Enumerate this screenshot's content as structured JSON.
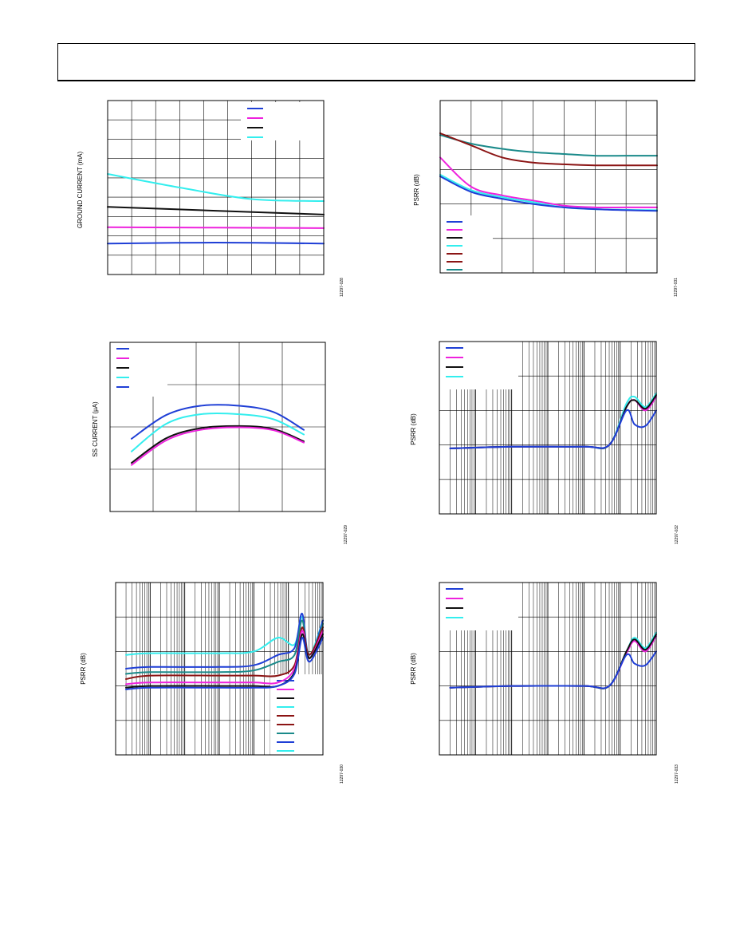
{
  "page": {
    "header_text": ""
  },
  "colors": {
    "blue": "#1f3fd6",
    "magenta": "#ee22dd",
    "black": "#111111",
    "cyan": "#33eeee",
    "maroon": "#8b1414",
    "teal": "#1a8a8a",
    "navy": "#1f3fd6"
  },
  "chart_data": [
    {
      "id": "c1",
      "type": "line",
      "ylabel": "GROUND CURRENT (mA)",
      "figure_id": "12297-028",
      "xscale": "linear",
      "xlim": [
        0,
        9
      ],
      "ylim": [
        0,
        9
      ],
      "grid": {
        "x": 9,
        "y": 9
      },
      "legend": {
        "position": "top-right",
        "colors": [
          "blue",
          "magenta",
          "black",
          "cyan"
        ]
      },
      "series": [
        {
          "color": "cyan",
          "x": [
            0,
            3,
            6,
            9
          ],
          "y": [
            5.2,
            4.5,
            3.9,
            3.8
          ]
        },
        {
          "color": "black",
          "x": [
            0,
            4.5,
            9
          ],
          "y": [
            3.5,
            3.3,
            3.1
          ]
        },
        {
          "color": "magenta",
          "x": [
            0,
            9
          ],
          "y": [
            2.45,
            2.4
          ]
        },
        {
          "color": "blue",
          "x": [
            0,
            4.5,
            9
          ],
          "y": [
            1.6,
            1.65,
            1.6
          ]
        }
      ]
    },
    {
      "id": "c2",
      "type": "line",
      "ylabel": "PSRR (dB)",
      "figure_id": "12297-031",
      "xscale": "linear",
      "xlim": [
        0,
        7
      ],
      "ylim": [
        0,
        5
      ],
      "grid": {
        "x": 7,
        "y": 5
      },
      "legend": {
        "position": "bottom-left",
        "colors": [
          "navy",
          "magenta",
          "black",
          "cyan",
          "maroon",
          "maroon",
          "teal"
        ]
      },
      "series": [
        {
          "color": "teal",
          "x": [
            0,
            1,
            2,
            3,
            4,
            5,
            6,
            7
          ],
          "y": [
            4.0,
            3.75,
            3.6,
            3.5,
            3.45,
            3.4,
            3.4,
            3.4
          ]
        },
        {
          "color": "maroon",
          "x": [
            0,
            1,
            2,
            3,
            4,
            5,
            6,
            7
          ],
          "y": [
            4.05,
            3.7,
            3.35,
            3.2,
            3.15,
            3.12,
            3.12,
            3.12
          ]
        },
        {
          "color": "magenta",
          "x": [
            0,
            1,
            2,
            3,
            4,
            5,
            6,
            7
          ],
          "y": [
            3.35,
            2.5,
            2.25,
            2.1,
            1.95,
            1.9,
            1.9,
            1.9
          ]
        },
        {
          "color": "cyan",
          "x": [
            0,
            1,
            2,
            3,
            4,
            5,
            6,
            7
          ],
          "y": [
            2.85,
            2.4,
            2.2,
            2.05,
            1.9,
            1.85,
            1.83,
            1.82
          ]
        },
        {
          "color": "blue",
          "x": [
            0,
            1,
            2,
            3,
            4,
            5,
            6,
            7
          ],
          "y": [
            2.8,
            2.35,
            2.15,
            2.0,
            1.9,
            1.85,
            1.82,
            1.8
          ]
        }
      ]
    },
    {
      "id": "c3",
      "type": "line",
      "ylabel": "SS CURRENT (µA)",
      "figure_id": "12297-029",
      "xscale": "linear",
      "xlim": [
        0,
        5
      ],
      "ylim": [
        0,
        4
      ],
      "grid": {
        "x": 5,
        "y": 4
      },
      "legend": {
        "position": "top-left",
        "colors": [
          "blue",
          "magenta",
          "black",
          "cyan",
          "blue"
        ]
      },
      "series": [
        {
          "color": "blue",
          "x": [
            0.5,
            1.3,
            2.1,
            3.0,
            3.8,
            4.5
          ],
          "y": [
            1.72,
            2.28,
            2.5,
            2.5,
            2.35,
            1.93
          ]
        },
        {
          "color": "cyan",
          "x": [
            0.5,
            1.3,
            2.1,
            3.0,
            3.8,
            4.5
          ],
          "y": [
            1.42,
            2.07,
            2.3,
            2.3,
            2.18,
            1.82
          ]
        },
        {
          "color": "black",
          "x": [
            0.5,
            1.3,
            2.1,
            3.0,
            3.8,
            4.5
          ],
          "y": [
            1.15,
            1.73,
            1.97,
            2.02,
            1.95,
            1.66
          ]
        },
        {
          "color": "magenta",
          "x": [
            0.5,
            1.3,
            2.1,
            3.0,
            3.8,
            4.5
          ],
          "y": [
            1.1,
            1.68,
            1.93,
            1.99,
            1.92,
            1.63
          ]
        }
      ]
    },
    {
      "id": "c4",
      "type": "line",
      "ylabel": "PSRR (dB)",
      "figure_id": "12297-032",
      "xscale": "log",
      "xlim": [
        10,
        10000000
      ],
      "ylim": [
        0,
        5
      ],
      "grid": {
        "x": "log",
        "y": 5
      },
      "legend": {
        "position": "top-left",
        "colors": [
          "blue",
          "magenta",
          "black",
          "cyan"
        ]
      },
      "series": [
        {
          "color": "cyan",
          "x": [
            20,
            1000,
            100000,
            500000,
            1500000,
            2500000,
            5000000,
            10000000
          ],
          "y": [
            1.9,
            1.95,
            1.95,
            2.0,
            3.2,
            3.4,
            3.1,
            3.5
          ]
        },
        {
          "color": "magenta",
          "x": [
            20,
            1000,
            100000,
            500000,
            1500000,
            2500000,
            5000000,
            10000000
          ],
          "y": [
            1.9,
            1.95,
            1.95,
            2.0,
            3.1,
            3.3,
            3.0,
            3.4
          ]
        },
        {
          "color": "black",
          "x": [
            20,
            1000,
            100000,
            500000,
            1500000,
            2500000,
            5000000,
            10000000
          ],
          "y": [
            1.9,
            1.95,
            1.95,
            2.0,
            3.1,
            3.3,
            3.05,
            3.45
          ]
        },
        {
          "color": "blue",
          "x": [
            20,
            1000,
            100000,
            500000,
            1500000,
            2500000,
            5000000,
            10000000
          ],
          "y": [
            1.9,
            1.95,
            1.95,
            2.0,
            3.0,
            2.6,
            2.55,
            3.0
          ]
        }
      ]
    },
    {
      "id": "c5",
      "type": "line",
      "ylabel": "PSRR (dB)",
      "figure_id": "12297-030",
      "xscale": "log",
      "xlim": [
        10,
        10000000
      ],
      "ylim": [
        0,
        5
      ],
      "grid": {
        "x": "log",
        "y": 5
      },
      "legend": {
        "position": "bottom-right",
        "colors": [
          "blue",
          "magenta",
          "black",
          "cyan",
          "maroon",
          "maroon",
          "teal",
          "blue",
          "cyan"
        ]
      },
      "series": [
        {
          "color": "cyan",
          "x": [
            20,
            100,
            10000,
            100000,
            500000,
            1500000,
            2500000,
            4000000,
            10000000
          ],
          "y": [
            2.9,
            2.95,
            2.95,
            3.0,
            3.4,
            3.2,
            4.0,
            2.9,
            3.9
          ]
        },
        {
          "color": "blue",
          "x": [
            20,
            100,
            10000,
            100000,
            500000,
            1500000,
            2500000,
            4000000,
            10000000
          ],
          "y": [
            2.5,
            2.55,
            2.55,
            2.6,
            2.9,
            3.1,
            4.1,
            2.8,
            3.9
          ]
        },
        {
          "color": "teal",
          "x": [
            20,
            100,
            10000,
            100000,
            500000,
            1500000,
            2500000,
            4000000,
            10000000
          ],
          "y": [
            2.35,
            2.4,
            2.4,
            2.45,
            2.7,
            2.9,
            3.9,
            2.8,
            3.8
          ]
        },
        {
          "color": "maroon",
          "x": [
            20,
            100,
            10000,
            100000,
            500000,
            1500000,
            2500000,
            4000000,
            10000000
          ],
          "y": [
            2.2,
            2.3,
            2.3,
            2.3,
            2.3,
            2.6,
            3.7,
            2.9,
            3.7
          ]
        },
        {
          "color": "magenta",
          "x": [
            20,
            100,
            10000,
            100000,
            500000,
            1500000,
            2500000,
            4000000,
            10000000
          ],
          "y": [
            2.05,
            2.1,
            2.1,
            2.1,
            2.1,
            2.5,
            3.6,
            2.8,
            3.6
          ]
        },
        {
          "color": "black",
          "x": [
            20,
            100,
            10000,
            100000,
            500000,
            1500000,
            2500000,
            4000000,
            10000000
          ],
          "y": [
            1.95,
            2.0,
            2.0,
            2.0,
            2.0,
            2.4,
            3.5,
            2.8,
            3.5
          ]
        },
        {
          "color": "navy",
          "x": [
            20,
            100,
            10000,
            100000,
            500000,
            1500000,
            2500000,
            4000000,
            10000000
          ],
          "y": [
            1.9,
            1.95,
            1.95,
            1.95,
            2.0,
            2.35,
            3.4,
            2.7,
            3.4
          ]
        }
      ]
    },
    {
      "id": "c6",
      "type": "line",
      "ylabel": "PSRR (dB)",
      "figure_id": "12297-033",
      "xscale": "log",
      "xlim": [
        10,
        10000000
      ],
      "ylim": [
        0,
        5
      ],
      "grid": {
        "x": "log",
        "y": 5
      },
      "legend": {
        "position": "top-left",
        "colors": [
          "blue",
          "magenta",
          "black",
          "cyan"
        ]
      },
      "series": [
        {
          "color": "cyan",
          "x": [
            20,
            1000,
            100000,
            500000,
            1500000,
            2500000,
            5000000,
            10000000
          ],
          "y": [
            1.95,
            2.0,
            2.0,
            2.0,
            3.0,
            3.4,
            3.1,
            3.55
          ]
        },
        {
          "color": "magenta",
          "x": [
            20,
            1000,
            100000,
            500000,
            1500000,
            2500000,
            5000000,
            10000000
          ],
          "y": [
            1.95,
            2.0,
            2.0,
            2.0,
            2.95,
            3.3,
            3.0,
            3.45
          ]
        },
        {
          "color": "black",
          "x": [
            20,
            1000,
            100000,
            500000,
            1500000,
            2500000,
            5000000,
            10000000
          ],
          "y": [
            1.95,
            2.0,
            2.0,
            2.0,
            3.0,
            3.35,
            3.05,
            3.5
          ]
        },
        {
          "color": "blue",
          "x": [
            20,
            1000,
            100000,
            500000,
            1500000,
            2500000,
            5000000,
            10000000
          ],
          "y": [
            1.95,
            2.0,
            2.0,
            2.0,
            2.9,
            2.65,
            2.6,
            3.0
          ]
        }
      ]
    }
  ]
}
